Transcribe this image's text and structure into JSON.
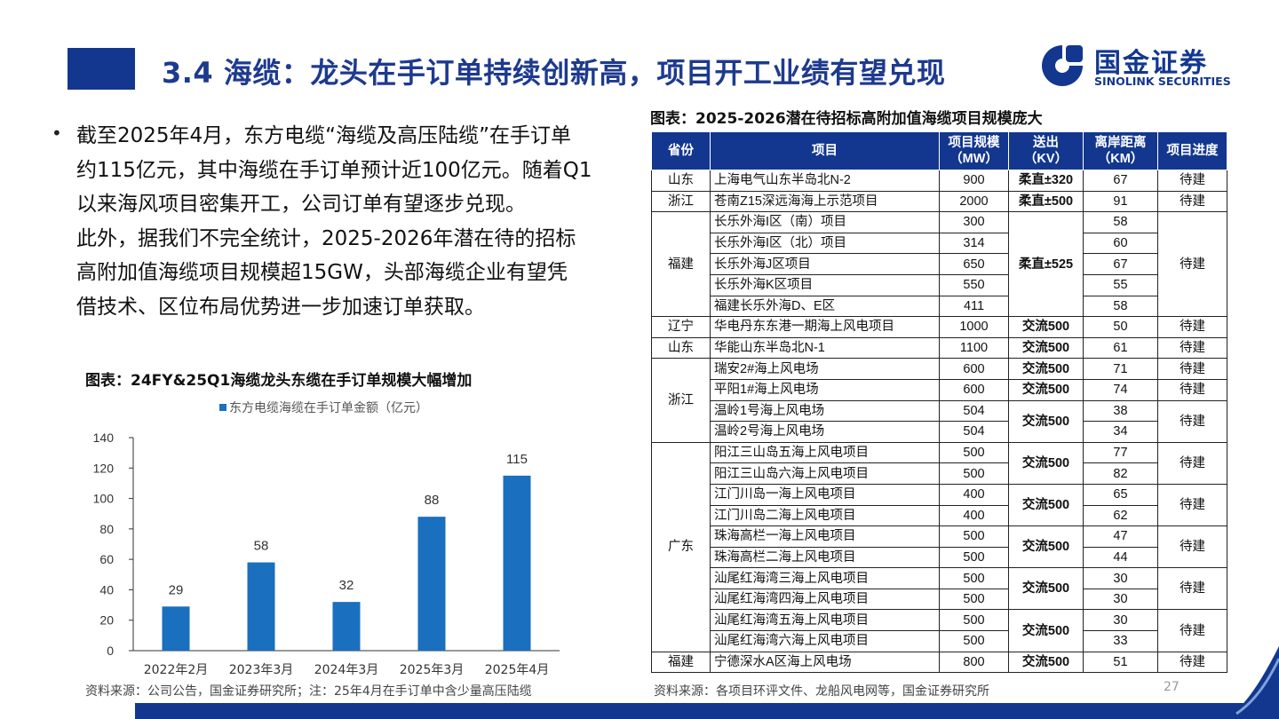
{
  "header": {
    "title": "3.4 海缆：龙头在手订单持续创新高，项目开工业绩有望兑现",
    "logo_cn": "国金证券",
    "logo_en": "SINOLINK SECURITIES"
  },
  "bullet": {
    "lines": [
      "截至2025年4月，东方电缆“海缆及高压陆缆”在手订单",
      "约115亿元，其中海缆在手订单预计近100亿元。随着Q1",
      "以来海风项目密集开工，公司订单有望逐步兑现。",
      "此外，据我们不完全统计，2025-2026年潜在待的招标",
      "高附加值海缆项目规模超15GW，头部海缆企业有望凭",
      "借技术、区位布局优势进一步加速订单获取。"
    ]
  },
  "chart_title": "图表：24FY&25Q1海缆龙头东缆在手订单规模大幅增加",
  "chart_data": {
    "type": "bar",
    "title": "",
    "legend": "东方电缆海缆在手订单金额（亿元）",
    "categories": [
      "2022年2月",
      "2023年3月",
      "2024年3月",
      "2025年3月",
      "2025年4月"
    ],
    "values": [
      29,
      58,
      32,
      88,
      115
    ],
    "ylim": [
      0,
      140
    ],
    "yticks": [
      0,
      20,
      40,
      60,
      80,
      100,
      120,
      140
    ],
    "grid": false,
    "legend_position": "top",
    "color": "#1a6fbf"
  },
  "source_left": "资料来源：公司公告，国金证券研究所；注：25年4月在手订单中含少量高压陆缆",
  "table_title": "图表：2025-2026潜在待招标高附加值海缆项目规模庞大",
  "table": {
    "headers": {
      "province": "省份",
      "project": "项目",
      "scale_a": "项目规模",
      "scale_b": "（MW）",
      "kv_a": "送出",
      "kv_b": "（KV）",
      "dist_a": "离岸距离",
      "dist_b": "（KM）",
      "progress": "项目进度"
    },
    "rows": [
      [
        "山东",
        "上海电气山东半岛北N-2",
        "900",
        "柔直±320",
        "67",
        "待建"
      ],
      [
        "浙江",
        "苍南Z15深远海海上示范项目",
        "2000",
        "柔直±500",
        "91",
        "待建"
      ],
      [
        "福建",
        "长乐外海I区（南）项目",
        "300",
        "柔直±525",
        "58",
        "待建"
      ],
      [
        "",
        "长乐外海I区（北）项目",
        "314",
        "",
        "60",
        ""
      ],
      [
        "",
        "长乐外海J区项目",
        "650",
        "",
        "67",
        ""
      ],
      [
        "",
        "长乐外海K区项目",
        "550",
        "",
        "55",
        ""
      ],
      [
        "",
        "福建长乐外海D、E区",
        "411",
        "",
        "58",
        ""
      ],
      [
        "辽宁",
        "华电丹东东港一期海上风电项目",
        "1000",
        "交流500",
        "50",
        "待建"
      ],
      [
        "山东",
        "华能山东半岛北N-1",
        "1100",
        "交流500",
        "61",
        "待建"
      ],
      [
        "浙江",
        "瑞安2#海上风电场",
        "600",
        "交流500",
        "71",
        "待建"
      ],
      [
        "",
        "平阳1#海上风电场",
        "600",
        "交流500",
        "74",
        "待建"
      ],
      [
        "",
        "温岭1号海上风电场",
        "504",
        "交流500",
        "38",
        "待建"
      ],
      [
        "",
        "温岭2号海上风电场",
        "504",
        "",
        "34",
        ""
      ],
      [
        "广东",
        "阳江三山岛五海上风电项目",
        "500",
        "交流500",
        "77",
        "待建"
      ],
      [
        "",
        "阳江三山岛六海上风电项目",
        "500",
        "",
        "82",
        ""
      ],
      [
        "",
        "江门川岛一海上风电项目",
        "400",
        "交流500",
        "65",
        "待建"
      ],
      [
        "",
        "江门川岛二海上风电项目",
        "400",
        "",
        "62",
        ""
      ],
      [
        "",
        "珠海高栏一海上风电项目",
        "500",
        "交流500",
        "47",
        "待建"
      ],
      [
        "",
        "珠海高栏二海上风电项目",
        "500",
        "",
        "44",
        ""
      ],
      [
        "",
        "汕尾红海湾三海上风电项目",
        "500",
        "交流500",
        "30",
        "待建"
      ],
      [
        "",
        "汕尾红海湾四海上风电项目",
        "500",
        "",
        "30",
        ""
      ],
      [
        "",
        "汕尾红海湾五海上风电项目",
        "500",
        "交流500",
        "30",
        "待建"
      ],
      [
        "",
        "汕尾红海湾六海上风电项目",
        "500",
        "",
        "33",
        ""
      ],
      [
        "福建",
        "宁德深水A区海上风电场",
        "800",
        "交流500",
        "51",
        "待建"
      ]
    ]
  },
  "source_right": "资料来源：各项目环评文件、龙船风电网等，国金证券研究所",
  "page_number": "27",
  "colors": {
    "brand": "#13378f",
    "bar": "#1a6fbf"
  }
}
